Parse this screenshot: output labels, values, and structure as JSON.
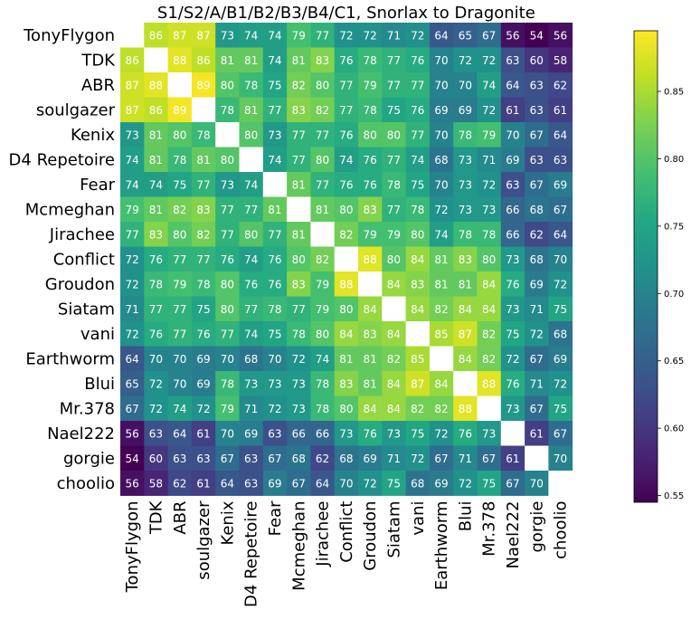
{
  "chart_data": {
    "type": "heatmap",
    "title": "S1/S2/A/B1/B2/B3/B4/C1, Snorlax to Dragonite",
    "labels": [
      "TonyFlygon",
      "TDK",
      "ABR",
      "soulgazer",
      "Kenix",
      "D4 Repetoire",
      "Fear",
      "Mcmeghan",
      "Jirachee",
      "Conflict",
      "Groudon",
      "Siatam",
      "vani",
      "Earthworm",
      "Blui",
      "Mr.378",
      "Nael222",
      "gorgie",
      "choolio"
    ],
    "matrix": [
      [
        null,
        86,
        87,
        87,
        73,
        74,
        74,
        79,
        77,
        72,
        72,
        71,
        72,
        64,
        65,
        67,
        56,
        54,
        56
      ],
      [
        86,
        null,
        88,
        86,
        81,
        81,
        74,
        81,
        83,
        76,
        78,
        77,
        76,
        70,
        72,
        72,
        63,
        60,
        58
      ],
      [
        87,
        88,
        null,
        89,
        80,
        78,
        75,
        82,
        80,
        77,
        79,
        77,
        77,
        70,
        70,
        74,
        64,
        63,
        62
      ],
      [
        87,
        86,
        89,
        null,
        78,
        81,
        77,
        83,
        82,
        77,
        78,
        75,
        76,
        69,
        69,
        72,
        61,
        63,
        61
      ],
      [
        73,
        81,
        80,
        78,
        null,
        80,
        73,
        77,
        77,
        76,
        80,
        80,
        77,
        70,
        78,
        79,
        70,
        67,
        64
      ],
      [
        74,
        81,
        78,
        81,
        80,
        null,
        74,
        77,
        80,
        74,
        76,
        77,
        74,
        68,
        73,
        71,
        69,
        63,
        63
      ],
      [
        74,
        74,
        75,
        77,
        73,
        74,
        null,
        81,
        77,
        76,
        76,
        78,
        75,
        70,
        73,
        72,
        63,
        67,
        69
      ],
      [
        79,
        81,
        82,
        83,
        77,
        77,
        81,
        null,
        81,
        80,
        83,
        77,
        78,
        72,
        73,
        73,
        66,
        68,
        67
      ],
      [
        77,
        83,
        80,
        82,
        77,
        80,
        77,
        81,
        null,
        82,
        79,
        79,
        80,
        74,
        78,
        78,
        66,
        62,
        64
      ],
      [
        72,
        76,
        77,
        77,
        76,
        74,
        76,
        80,
        82,
        null,
        88,
        80,
        84,
        81,
        83,
        80,
        73,
        68,
        70
      ],
      [
        72,
        78,
        79,
        78,
        80,
        76,
        76,
        83,
        79,
        88,
        null,
        84,
        83,
        81,
        81,
        84,
        76,
        69,
        72
      ],
      [
        71,
        77,
        77,
        75,
        80,
        77,
        78,
        77,
        79,
        80,
        84,
        null,
        84,
        82,
        84,
        84,
        73,
        71,
        75
      ],
      [
        72,
        76,
        77,
        76,
        77,
        74,
        75,
        78,
        80,
        84,
        83,
        84,
        null,
        85,
        87,
        82,
        75,
        72,
        68
      ],
      [
        64,
        70,
        70,
        69,
        70,
        68,
        70,
        72,
        74,
        81,
        81,
        82,
        85,
        null,
        84,
        82,
        72,
        67,
        69
      ],
      [
        65,
        72,
        70,
        69,
        78,
        73,
        73,
        73,
        78,
        83,
        81,
        84,
        87,
        84,
        null,
        88,
        76,
        71,
        72
      ],
      [
        67,
        72,
        74,
        72,
        79,
        71,
        72,
        73,
        78,
        80,
        84,
        84,
        82,
        82,
        88,
        null,
        73,
        67,
        75
      ],
      [
        56,
        63,
        64,
        61,
        70,
        69,
        63,
        66,
        66,
        73,
        76,
        73,
        75,
        72,
        76,
        73,
        null,
        61,
        67
      ],
      [
        54,
        60,
        63,
        63,
        67,
        63,
        67,
        68,
        62,
        68,
        69,
        71,
        72,
        67,
        71,
        67,
        61,
        null,
        70
      ],
      [
        56,
        58,
        62,
        61,
        64,
        63,
        69,
        67,
        64,
        70,
        72,
        75,
        68,
        69,
        72,
        75,
        67,
        70,
        null
      ]
    ],
    "color_range": [
      0.545,
      0.895
    ],
    "colormap": "viridis",
    "colorbar_ticks": [
      "0.55",
      "0.60",
      "0.65",
      "0.70",
      "0.75",
      "0.80",
      "0.85"
    ],
    "colorbar_tick_values": [
      0.55,
      0.6,
      0.65,
      0.7,
      0.75,
      0.8,
      0.85
    ],
    "diagonal_color": "#ffffff"
  }
}
